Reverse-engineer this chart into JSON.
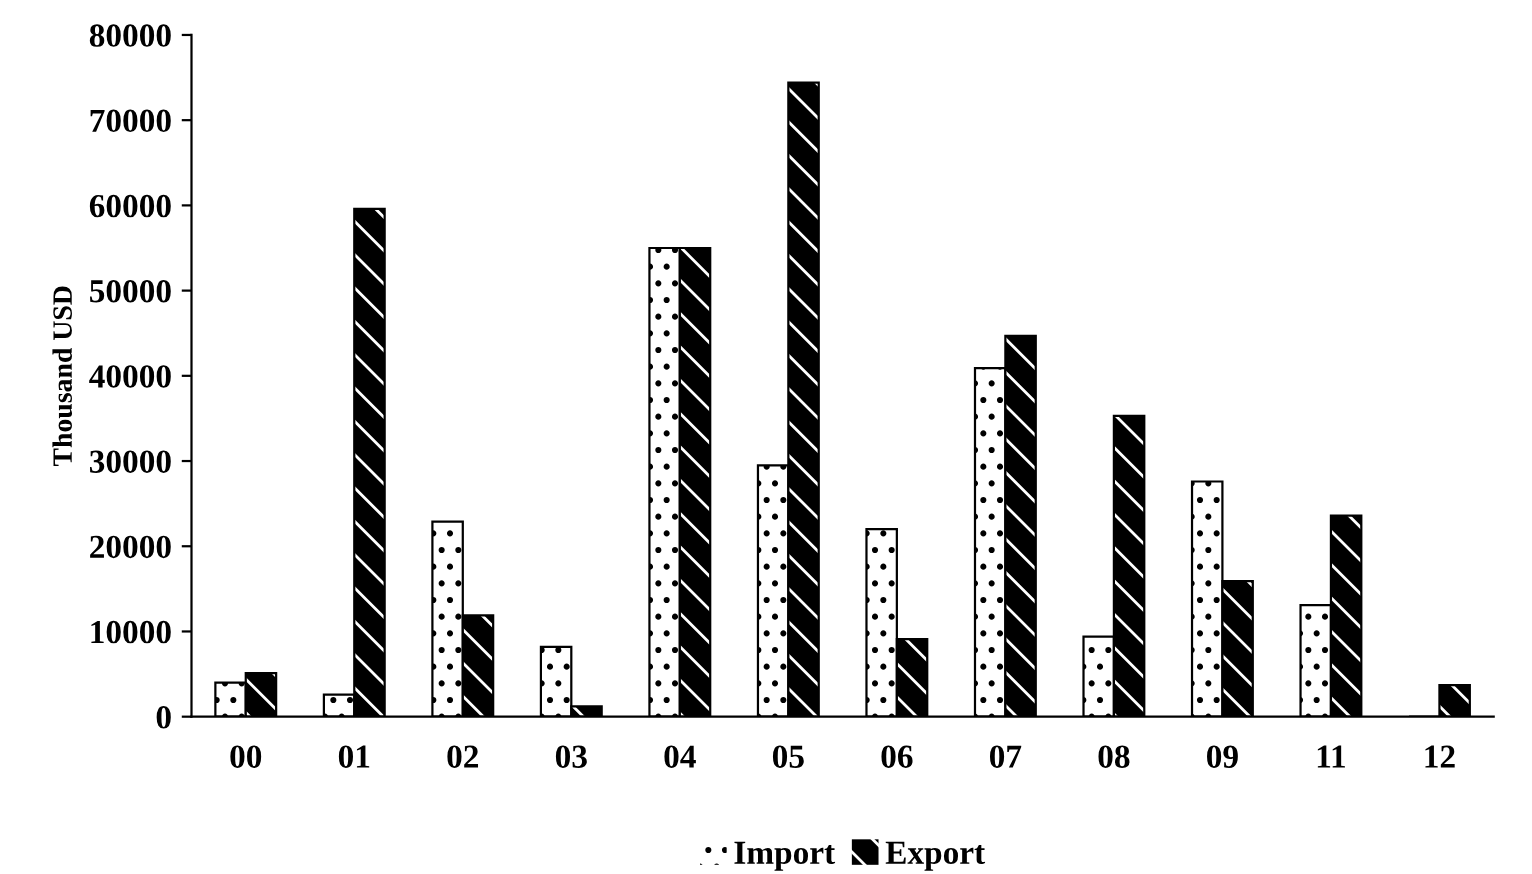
{
  "chart_data": {
    "type": "bar",
    "ylabel": "Thousand USD",
    "categories": [
      "00",
      "01",
      "02",
      "03",
      "04",
      "05",
      "06",
      "07",
      "08",
      "09",
      "11",
      "12"
    ],
    "series": [
      {
        "name": "Import",
        "color": "#ffffff",
        "values": [
          4000,
          2600,
          22900,
          8200,
          55000,
          29500,
          22000,
          40900,
          9400,
          27600,
          13100,
          0
        ]
      },
      {
        "name": "Export",
        "color": "#000000",
        "values": [
          5100,
          59600,
          11900,
          1200,
          55000,
          74400,
          9100,
          44700,
          35300,
          15900,
          23600,
          3700
        ]
      }
    ],
    "ylim": [
      0,
      80000
    ],
    "yticks": [
      0,
      10000,
      20000,
      30000,
      40000,
      50000,
      60000,
      70000,
      80000
    ],
    "grid": false,
    "legend": "bottom"
  }
}
